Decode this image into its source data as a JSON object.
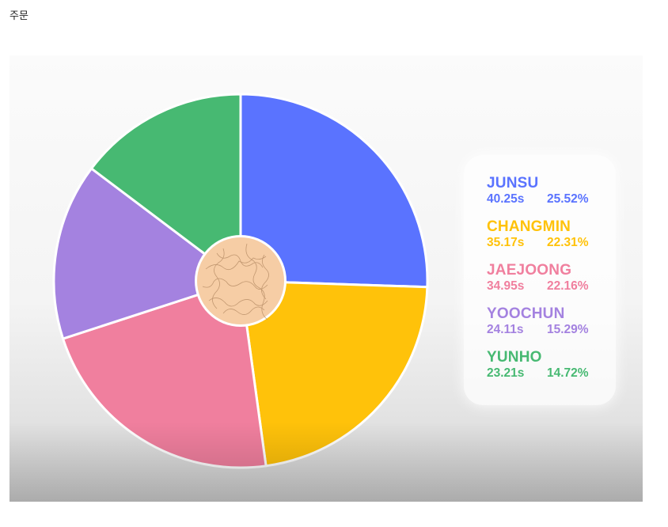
{
  "page_label": "주문",
  "chart_data": {
    "type": "pie",
    "title": "",
    "categories": [
      "JUNSU",
      "CHANGMIN",
      "JAEJOONG",
      "YOOCHUN",
      "YUNHO"
    ],
    "times": [
      "40.25s",
      "35.17s",
      "34.95s",
      "24.11s",
      "23.21s"
    ],
    "percent_labels": [
      "25.52%",
      "22.31%",
      "22.16%",
      "15.29%",
      "14.72%"
    ],
    "values": [
      25.52,
      22.31,
      22.16,
      15.29,
      14.72
    ],
    "colors": [
      "#5a73ff",
      "#ffc20a",
      "#f07f9e",
      "#a482e0",
      "#47b972"
    ],
    "legend_placement": "right",
    "center_icon": "textured-ball-icon"
  }
}
